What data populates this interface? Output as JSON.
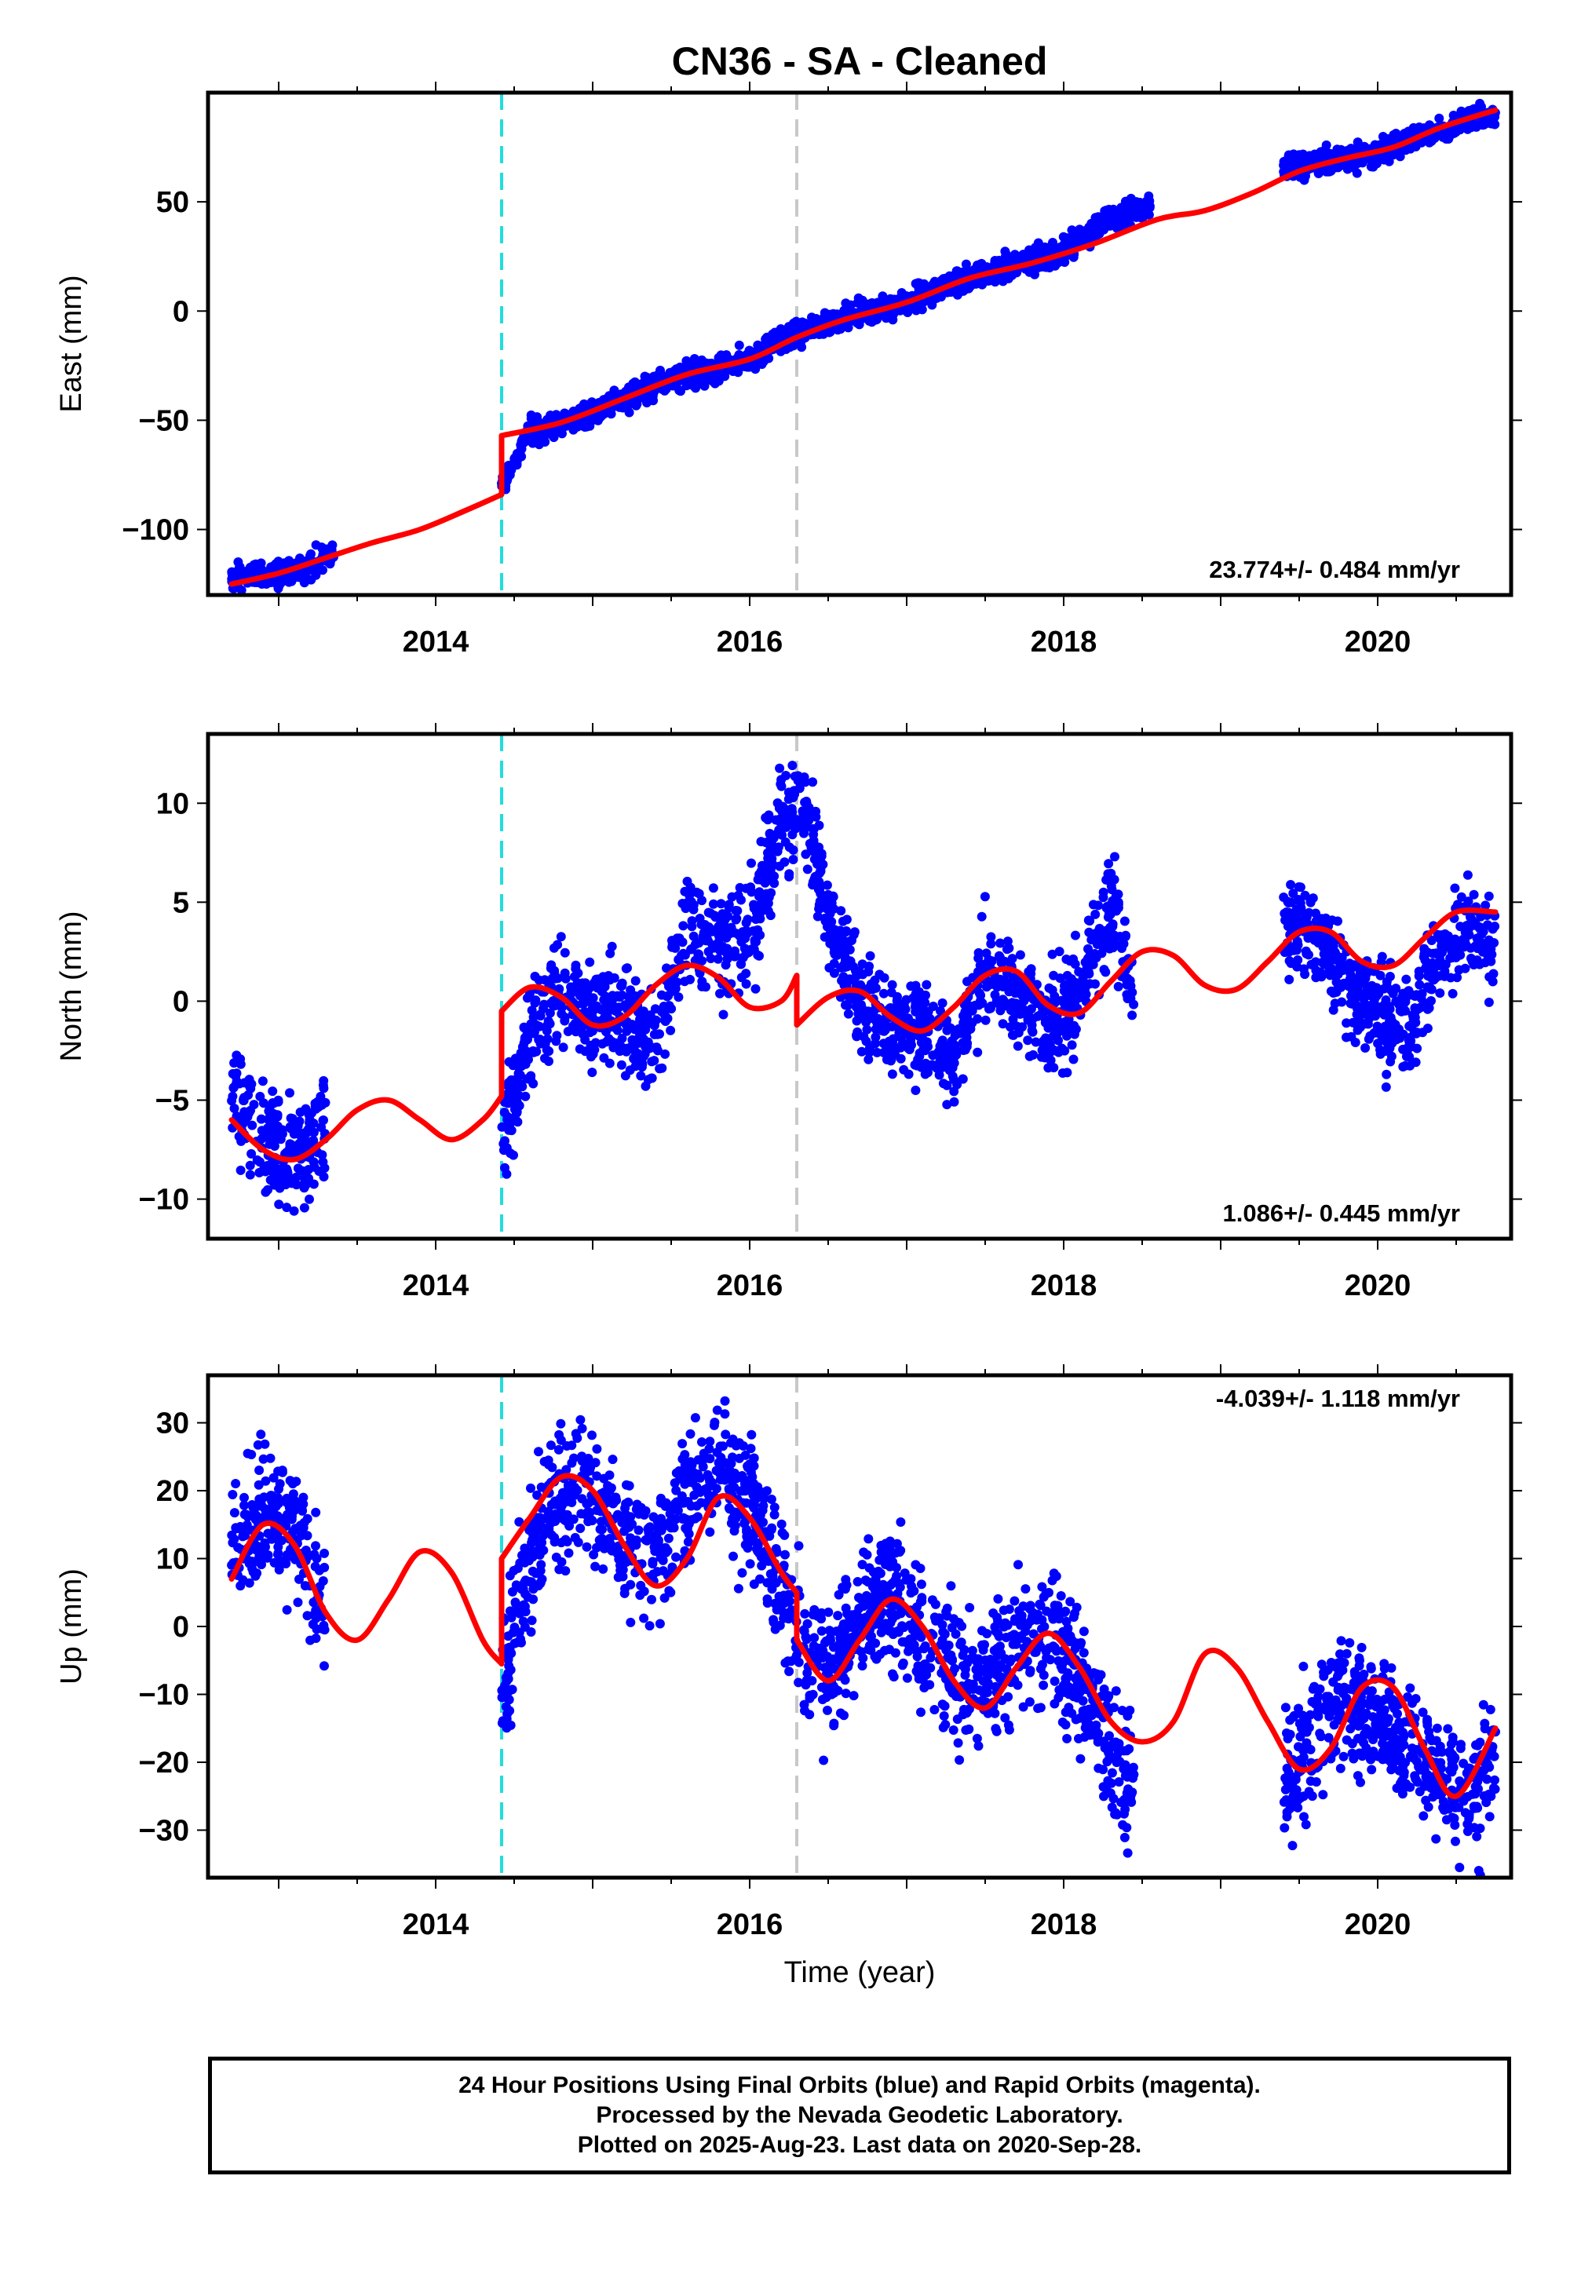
{
  "title": "CN36  - SA - Cleaned",
  "xlabel": "Time (year)",
  "colors": {
    "points": "#0000ff",
    "model": "#ff0000",
    "event_cyan": "#22dddd",
    "event_gray": "#c8c8c8"
  },
  "footer": {
    "line1": "24 Hour Positions Using Final Orbits (blue) and Rapid Orbits (magenta).",
    "line2": "Processed by the Nevada Geodetic Laboratory.",
    "line3": "Plotted on 2025-Aug-23. Last data on 2020-Sep-28."
  },
  "chart_data": [
    {
      "type": "scatter",
      "ylabel": "East (mm)",
      "rate_label": "23.774+/- 0.484 mm/yr",
      "rate_position": "bottom-right",
      "xlim": [
        2012.55,
        2020.85
      ],
      "ylim": [
        -130,
        100
      ],
      "xticks": [
        "2014",
        "2016",
        "2018",
        "2020"
      ],
      "yticks": [
        "50",
        "0",
        "−50",
        "−100"
      ],
      "event_lines": [
        {
          "x": 2014.42,
          "color": "cyan"
        },
        {
          "x": 2016.3,
          "color": "gray"
        }
      ],
      "series": [
        {
          "kind": "points",
          "segments": [
            {
              "x": [
                2012.7,
                2013.0,
                2013.2,
                2013.35
              ],
              "y": [
                -121,
                -121,
                -117,
                -110
              ]
            },
            {
              "x": [
                2014.42,
                2014.6,
                2014.9,
                2015.2,
                2015.5,
                2015.8,
                2016.0,
                2016.3,
                2016.6,
                2017.0,
                2017.3,
                2017.6,
                2017.9,
                2018.1,
                2018.3,
                2018.55
              ],
              "y": [
                -80,
                -55,
                -50,
                -40,
                -31,
                -27,
                -22,
                -10,
                -3,
                4,
                13,
                21,
                24,
                32,
                43,
                48
              ]
            },
            {
              "x": [
                2019.4,
                2019.6,
                2019.8,
                2020.0,
                2020.2,
                2020.4,
                2020.6,
                2020.75
              ],
              "y": [
                66,
                68,
                70,
                73,
                78,
                82,
                88,
                90
              ]
            }
          ]
        },
        {
          "kind": "model",
          "x": [
            2012.7,
            2013.0,
            2013.3,
            2013.6,
            2013.9,
            2014.2,
            2014.42,
            2014.42,
            2014.8,
            2015.2,
            2015.6,
            2016.0,
            2016.3,
            2016.6,
            2017.0,
            2017.4,
            2017.8,
            2018.2,
            2018.6,
            2018.9,
            2019.2,
            2019.5,
            2019.8,
            2020.1,
            2020.4,
            2020.75
          ],
          "y": [
            -125,
            -120,
            -113,
            -106,
            -100,
            -91,
            -84,
            -57,
            -51,
            -40,
            -29,
            -22,
            -12,
            -4,
            4,
            15,
            22,
            31,
            42,
            46,
            54,
            64,
            70,
            75,
            84,
            92
          ]
        }
      ]
    },
    {
      "type": "scatter",
      "ylabel": "North (mm)",
      "rate_label": "1.086+/- 0.445 mm/yr",
      "rate_position": "bottom-right",
      "xlim": [
        2012.55,
        2020.85
      ],
      "ylim": [
        -12,
        13.5
      ],
      "xticks": [
        "2014",
        "2016",
        "2018",
        "2020"
      ],
      "yticks": [
        "10",
        "5",
        "0",
        "−5",
        "−10"
      ],
      "event_lines": [
        {
          "x": 2014.42,
          "color": "cyan"
        },
        {
          "x": 2016.3,
          "color": "gray"
        }
      ],
      "series": [
        {
          "kind": "points",
          "segments": [
            {
              "x": [
                2012.7,
                2012.9,
                2013.1,
                2013.3
              ],
              "y": [
                -4.5,
                -7,
                -8,
                -6.5
              ]
            },
            {
              "x": [
                2014.42,
                2014.6,
                2014.8,
                2015.0,
                2015.2,
                2015.4,
                2015.6,
                2015.8,
                2016.0,
                2016.2,
                2016.35,
                2016.5,
                2016.7,
                2016.9,
                2017.1,
                2017.3,
                2017.5,
                2017.7,
                2017.9,
                2018.1,
                2018.3,
                2018.45
              ],
              "y": [
                -7,
                -2,
                0.5,
                -0.5,
                -1,
                -2,
                3.5,
                3,
                3,
                9,
                10,
                4,
                0,
                -1,
                -2,
                -3,
                2,
                0,
                -1,
                0,
                5,
                0
              ]
            },
            {
              "x": [
                2019.4,
                2019.6,
                2019.8,
                2020.0,
                2020.2,
                2020.4,
                2020.6,
                2020.75
              ],
              "y": [
                4,
                3.5,
                0.5,
                -0.5,
                -1,
                2,
                4,
                2.5
              ]
            }
          ]
        },
        {
          "kind": "model",
          "x": [
            2012.7,
            2012.9,
            2013.1,
            2013.3,
            2013.5,
            2013.7,
            2013.9,
            2014.1,
            2014.3,
            2014.42,
            2014.42,
            2014.6,
            2014.8,
            2015.0,
            2015.2,
            2015.4,
            2015.6,
            2015.8,
            2016.0,
            2016.2,
            2016.3,
            2016.3,
            2016.5,
            2016.7,
            2016.9,
            2017.1,
            2017.3,
            2017.5,
            2017.7,
            2017.9,
            2018.1,
            2018.3,
            2018.5,
            2018.7,
            2018.9,
            2019.1,
            2019.3,
            2019.5,
            2019.7,
            2019.9,
            2020.1,
            2020.3,
            2020.5,
            2020.75
          ],
          "y": [
            -6,
            -7.5,
            -8,
            -7,
            -5.5,
            -5,
            -6,
            -7,
            -6,
            -4.8,
            -0.5,
            0.7,
            0.2,
            -1.2,
            -0.8,
            0.8,
            1.8,
            1.2,
            -0.3,
            0,
            1.3,
            -1.2,
            0.2,
            0.5,
            -0.8,
            -1.5,
            -0.3,
            1.3,
            1.5,
            -0.2,
            -0.6,
            1,
            2.5,
            2.3,
            0.8,
            0.6,
            2,
            3.5,
            3.5,
            2,
            1.8,
            3.2,
            4.5,
            4.5
          ]
        }
      ]
    },
    {
      "type": "scatter",
      "ylabel": "Up (mm)",
      "rate_label": "-4.039+/- 1.118 mm/yr",
      "rate_position": "top-right",
      "xlim": [
        2012.55,
        2020.85
      ],
      "ylim": [
        -37,
        37
      ],
      "xticks": [
        "2014",
        "2016",
        "2018",
        "2020"
      ],
      "yticks": [
        "30",
        "20",
        "10",
        "0",
        "−10",
        "−20",
        "−30"
      ],
      "event_lines": [
        {
          "x": 2014.42,
          "color": "cyan"
        },
        {
          "x": 2016.3,
          "color": "gray"
        }
      ],
      "series": [
        {
          "kind": "points",
          "segments": [
            {
              "x": [
                2012.7,
                2012.9,
                2013.1,
                2013.3
              ],
              "y": [
                12,
                16,
                14,
                2
              ]
            },
            {
              "x": [
                2014.42,
                2014.6,
                2014.8,
                2015.0,
                2015.2,
                2015.4,
                2015.6,
                2015.8,
                2016.0,
                2016.2,
                2016.35,
                2016.5,
                2016.7,
                2016.9,
                2017.1,
                2017.3,
                2017.5,
                2017.7,
                2017.9,
                2018.1,
                2018.3,
                2018.45
              ],
              "y": [
                -10,
                10,
                20,
                20,
                12,
                10,
                18,
                22,
                18,
                5,
                -3,
                -8,
                2,
                5,
                -2,
                -8,
                -9,
                -3,
                0,
                -8,
                -18,
                -24
              ]
            },
            {
              "x": [
                2019.4,
                2019.6,
                2019.8,
                2020.0,
                2020.2,
                2020.4,
                2020.6,
                2020.75
              ],
              "y": [
                -22,
                -16,
                -10,
                -14,
                -18,
                -22,
                -25,
                -20
              ]
            }
          ]
        },
        {
          "kind": "model",
          "x": [
            2012.7,
            2012.9,
            2013.1,
            2013.3,
            2013.5,
            2013.7,
            2013.9,
            2014.1,
            2014.3,
            2014.42,
            2014.42,
            2014.6,
            2014.8,
            2015.0,
            2015.2,
            2015.4,
            2015.6,
            2015.8,
            2016.0,
            2016.2,
            2016.3,
            2016.3,
            2016.5,
            2016.7,
            2016.9,
            2017.1,
            2017.3,
            2017.5,
            2017.7,
            2017.9,
            2018.1,
            2018.3,
            2018.5,
            2018.7,
            2018.9,
            2019.1,
            2019.3,
            2019.5,
            2019.7,
            2019.9,
            2020.1,
            2020.3,
            2020.5,
            2020.75
          ],
          "y": [
            7,
            15,
            12,
            2,
            -2,
            4,
            11,
            8,
            -2,
            -5.5,
            10,
            16,
            22,
            20,
            12,
            6,
            10,
            19,
            16,
            8,
            5,
            -2,
            -8,
            -2,
            4,
            0,
            -8,
            -12,
            -6,
            -1,
            -6,
            -14,
            -17,
            -14,
            -4,
            -6,
            -14,
            -21,
            -18,
            -9,
            -9,
            -18,
            -25,
            -15
          ]
        }
      ]
    }
  ]
}
